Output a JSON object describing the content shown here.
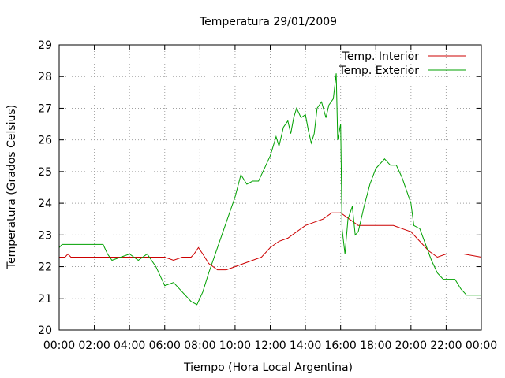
{
  "chart_data": {
    "type": "line",
    "title": "Temperatura 29/01/2009",
    "xlabel": "Tiempo (Hora Local Argentina)",
    "ylabel": "Temperatura (Grados Celsius)",
    "xlim": [
      "00:00",
      "24:00"
    ],
    "ylim": [
      20,
      29
    ],
    "x_tick_labels": [
      "00:00",
      "02:00",
      "04:00",
      "06:00",
      "08:00",
      "10:00",
      "12:00",
      "14:00",
      "16:00",
      "18:00",
      "20:00",
      "22:00",
      "00:00"
    ],
    "y_tick_labels": [
      "20",
      "21",
      "22",
      "23",
      "24",
      "25",
      "26",
      "27",
      "28",
      "29"
    ],
    "grid": true,
    "legend_position": "top-right",
    "series": [
      {
        "name": "Temp. Interior",
        "color": "#cc0000",
        "points": [
          [
            "00:00",
            22.3
          ],
          [
            "00:20",
            22.3
          ],
          [
            "00:30",
            22.4
          ],
          [
            "00:40",
            22.3
          ],
          [
            "01:00",
            22.3
          ],
          [
            "02:00",
            22.3
          ],
          [
            "03:00",
            22.3
          ],
          [
            "04:00",
            22.3
          ],
          [
            "05:00",
            22.3
          ],
          [
            "06:00",
            22.3
          ],
          [
            "06:30",
            22.2
          ],
          [
            "07:00",
            22.3
          ],
          [
            "07:30",
            22.3
          ],
          [
            "07:40",
            22.4
          ],
          [
            "07:55",
            22.6
          ],
          [
            "08:10",
            22.4
          ],
          [
            "08:30",
            22.1
          ],
          [
            "09:00",
            21.9
          ],
          [
            "09:30",
            21.9
          ],
          [
            "10:00",
            22.0
          ],
          [
            "10:30",
            22.1
          ],
          [
            "11:00",
            22.2
          ],
          [
            "11:30",
            22.3
          ],
          [
            "12:00",
            22.6
          ],
          [
            "12:30",
            22.8
          ],
          [
            "13:00",
            22.9
          ],
          [
            "13:30",
            23.1
          ],
          [
            "14:00",
            23.3
          ],
          [
            "14:30",
            23.4
          ],
          [
            "15:00",
            23.5
          ],
          [
            "15:30",
            23.7
          ],
          [
            "16:00",
            23.7
          ],
          [
            "16:30",
            23.5
          ],
          [
            "17:00",
            23.3
          ],
          [
            "18:00",
            23.3
          ],
          [
            "19:00",
            23.3
          ],
          [
            "19:30",
            23.2
          ],
          [
            "20:00",
            23.1
          ],
          [
            "20:30",
            22.8
          ],
          [
            "21:00",
            22.5
          ],
          [
            "21:30",
            22.3
          ],
          [
            "22:00",
            22.4
          ],
          [
            "23:00",
            22.4
          ],
          [
            "24:00",
            22.3
          ]
        ]
      },
      {
        "name": "Temp. Exterior",
        "color": "#00a000",
        "points": [
          [
            "00:00",
            22.6
          ],
          [
            "00:10",
            22.7
          ],
          [
            "01:00",
            22.7
          ],
          [
            "02:00",
            22.7
          ],
          [
            "02:30",
            22.7
          ],
          [
            "02:45",
            22.4
          ],
          [
            "03:00",
            22.2
          ],
          [
            "03:30",
            22.3
          ],
          [
            "04:00",
            22.4
          ],
          [
            "04:30",
            22.2
          ],
          [
            "05:00",
            22.4
          ],
          [
            "05:30",
            22.0
          ],
          [
            "06:00",
            21.4
          ],
          [
            "06:30",
            21.5
          ],
          [
            "07:00",
            21.2
          ],
          [
            "07:30",
            20.9
          ],
          [
            "07:50",
            20.8
          ],
          [
            "08:10",
            21.2
          ],
          [
            "08:30",
            21.8
          ],
          [
            "09:00",
            22.6
          ],
          [
            "09:30",
            23.4
          ],
          [
            "10:00",
            24.2
          ],
          [
            "10:20",
            24.9
          ],
          [
            "10:40",
            24.6
          ],
          [
            "11:00",
            24.7
          ],
          [
            "11:20",
            24.7
          ],
          [
            "11:40",
            25.1
          ],
          [
            "12:00",
            25.5
          ],
          [
            "12:20",
            26.1
          ],
          [
            "12:30",
            25.8
          ],
          [
            "12:45",
            26.4
          ],
          [
            "13:00",
            26.6
          ],
          [
            "13:10",
            26.2
          ],
          [
            "13:20",
            26.7
          ],
          [
            "13:30",
            27.0
          ],
          [
            "13:45",
            26.7
          ],
          [
            "14:00",
            26.8
          ],
          [
            "14:10",
            26.3
          ],
          [
            "14:20",
            25.9
          ],
          [
            "14:30",
            26.2
          ],
          [
            "14:40",
            27.0
          ],
          [
            "14:55",
            27.2
          ],
          [
            "15:10",
            26.7
          ],
          [
            "15:20",
            27.1
          ],
          [
            "15:35",
            27.3
          ],
          [
            "15:45",
            28.1
          ],
          [
            "15:50",
            26.0
          ],
          [
            "16:00",
            26.5
          ],
          [
            "16:05",
            23.2
          ],
          [
            "16:15",
            22.4
          ],
          [
            "16:25",
            23.5
          ],
          [
            "16:40",
            23.9
          ],
          [
            "16:50",
            23.0
          ],
          [
            "17:00",
            23.1
          ],
          [
            "17:20",
            23.9
          ],
          [
            "17:40",
            24.6
          ],
          [
            "18:00",
            25.1
          ],
          [
            "18:30",
            25.4
          ],
          [
            "18:50",
            25.2
          ],
          [
            "19:10",
            25.2
          ],
          [
            "19:30",
            24.8
          ],
          [
            "20:00",
            24.0
          ],
          [
            "20:10",
            23.3
          ],
          [
            "20:30",
            23.2
          ],
          [
            "20:50",
            22.7
          ],
          [
            "21:10",
            22.2
          ],
          [
            "21:30",
            21.8
          ],
          [
            "21:50",
            21.6
          ],
          [
            "22:10",
            21.6
          ],
          [
            "22:30",
            21.6
          ],
          [
            "22:50",
            21.3
          ],
          [
            "23:10",
            21.1
          ],
          [
            "24:00",
            21.1
          ]
        ]
      }
    ]
  }
}
